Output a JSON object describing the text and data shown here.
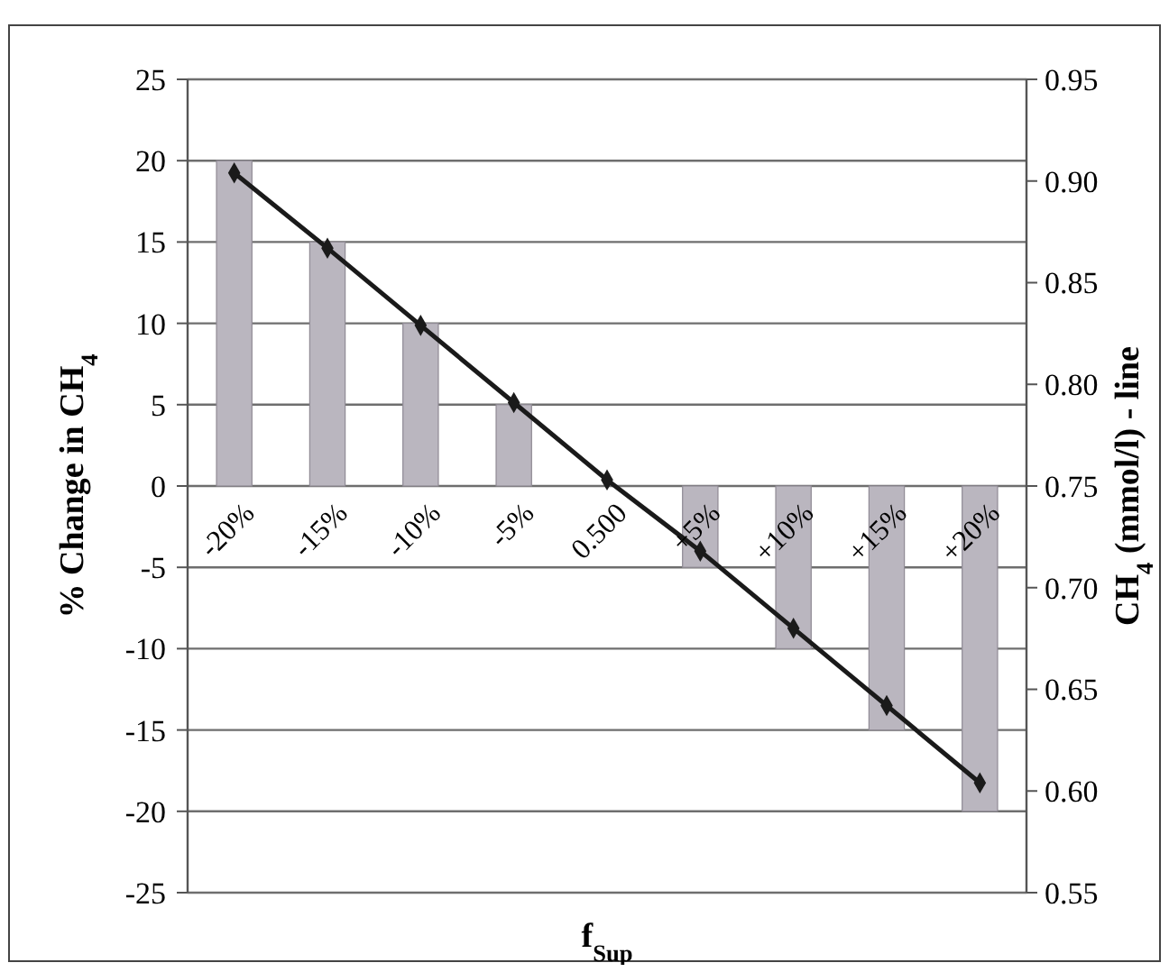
{
  "chart_data": {
    "type": "bar",
    "ylabel": "% Change in CH$_{4}$",
    "y2label": "CH$_{4}$ (mmol/l) - line",
    "xlabel": "f$_{Sup}$",
    "categories": [
      "-20%",
      "-15%",
      "-10%",
      "-5%",
      "0.500",
      "+5%",
      "+10%",
      "+15%",
      "+20%"
    ],
    "series": [
      {
        "color": "#bab6bf",
        "values": [
          20,
          15,
          10,
          5,
          0,
          -5,
          -10,
          -15,
          -20
        ]
      },
      {
        "type": "line",
        "axis": "y2",
        "color": "#1a1a1a",
        "marker": "diamond",
        "line_style": "solid",
        "values": [
          0.904,
          0.867,
          0.829,
          0.791,
          0.753,
          0.718,
          0.68,
          0.642,
          0.604
        ]
      }
    ],
    "ylim": [
      -25,
      25
    ],
    "yticks": [
      -25,
      -20,
      -15,
      -10,
      -5,
      0,
      5,
      10,
      15,
      20,
      25
    ],
    "y2lim": [
      0.55,
      0.95
    ],
    "y2ticks": [
      {
        "value": 0.55,
        "label": "0.55"
      },
      {
        "value": 0.6,
        "label": "0.60"
      },
      {
        "value": 0.65,
        "label": "0.65"
      },
      {
        "value": 0.7,
        "label": "0.70"
      },
      {
        "value": 0.75,
        "label": "0.75"
      },
      {
        "value": 0.8,
        "label": "0.80"
      },
      {
        "value": 0.85,
        "label": "0.85"
      },
      {
        "value": 0.9,
        "label": "0.90"
      },
      {
        "value": 0.95,
        "label": "0.95"
      }
    ],
    "grid": "y"
  }
}
